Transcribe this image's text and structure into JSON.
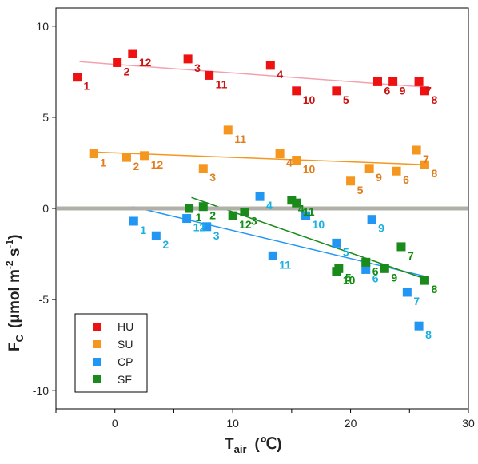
{
  "chart_data": {
    "type": "scatter",
    "title": "",
    "xlabel": {
      "main": "T",
      "sub": "air",
      "unit": "(℃)"
    },
    "ylabel": {
      "main": "F",
      "sub": "C",
      "unit_pre": "(μmol m",
      "sup1": "-2",
      "mid": " s",
      "sup2": "-1",
      "unit_post": ")"
    },
    "xlim": [
      -5,
      30
    ],
    "ylim": [
      -11,
      11
    ],
    "xticks": [
      -5,
      0,
      5,
      10,
      15,
      20,
      25,
      30
    ],
    "yticks": [
      -10,
      -5,
      0,
      5,
      10
    ],
    "xtick_labels": [
      "",
      "0",
      "",
      "10",
      "",
      "20",
      "",
      "30"
    ],
    "ytick_labels": [
      "-10",
      "-5",
      "0",
      "5",
      "10"
    ],
    "zero_line": {
      "y": 0,
      "color": "#b0b0a8"
    },
    "legend": {
      "position": "bottom-left",
      "entries": [
        "HU",
        "SU",
        "CP",
        "SF"
      ]
    },
    "series": [
      {
        "name": "HU",
        "color": "#ee1111",
        "label_color": "#cc1111",
        "line_color": "#f4a0b0",
        "fit": {
          "x": [
            -3,
            26.5
          ],
          "y": [
            8.05,
            6.65
          ]
        },
        "points": [
          {
            "x": -3.2,
            "y": 7.2,
            "label": "1"
          },
          {
            "x": 0.2,
            "y": 8.0,
            "label": "2"
          },
          {
            "x": 6.2,
            "y": 8.2,
            "label": "3"
          },
          {
            "x": 13.2,
            "y": 7.85,
            "label": "4"
          },
          {
            "x": 18.8,
            "y": 6.45,
            "label": "5"
          },
          {
            "x": 22.3,
            "y": 6.95,
            "label": "6"
          },
          {
            "x": 25.8,
            "y": 6.95,
            "label": "7"
          },
          {
            "x": 26.3,
            "y": 6.45,
            "label": "8"
          },
          {
            "x": 23.6,
            "y": 6.95,
            "label": "9"
          },
          {
            "x": 15.4,
            "y": 6.45,
            "label": "10"
          },
          {
            "x": 8.0,
            "y": 7.3,
            "label": "11"
          },
          {
            "x": 1.5,
            "y": 8.5,
            "label": "12"
          }
        ]
      },
      {
        "name": "SU",
        "color": "#f5961e",
        "label_color": "#e07d1c",
        "line_color": "#f5961e",
        "fit": {
          "x": [
            -2,
            26.5
          ],
          "y": [
            3.1,
            2.4
          ]
        },
        "points": [
          {
            "x": -1.8,
            "y": 3.0,
            "label": "1"
          },
          {
            "x": 1.0,
            "y": 2.8,
            "label": "2"
          },
          {
            "x": 7.5,
            "y": 2.2,
            "label": "3"
          },
          {
            "x": 14.0,
            "y": 3.0,
            "label": "4"
          },
          {
            "x": 20.0,
            "y": 1.5,
            "label": "5"
          },
          {
            "x": 23.9,
            "y": 2.05,
            "label": "6"
          },
          {
            "x": 25.6,
            "y": 3.2,
            "label": "7"
          },
          {
            "x": 26.3,
            "y": 2.4,
            "label": "8"
          },
          {
            "x": 21.6,
            "y": 2.2,
            "label": "9"
          },
          {
            "x": 15.4,
            "y": 2.65,
            "label": "10"
          },
          {
            "x": 9.6,
            "y": 4.3,
            "label": "11"
          },
          {
            "x": 2.5,
            "y": 2.9,
            "label": "12"
          }
        ]
      },
      {
        "name": "CP",
        "color": "#2196f3",
        "label_color": "#1ab0e0",
        "line_color": "#2196f3",
        "fit": {
          "x": [
            1.5,
            26.5
          ],
          "y": [
            0.1,
            -3.75
          ]
        },
        "points": [
          {
            "x": 1.6,
            "y": -0.7,
            "label": "1"
          },
          {
            "x": 3.5,
            "y": -1.5,
            "label": "2"
          },
          {
            "x": 7.8,
            "y": -1.0,
            "label": "3"
          },
          {
            "x": 12.3,
            "y": 0.65,
            "label": "4"
          },
          {
            "x": 18.8,
            "y": -1.9,
            "label": "5"
          },
          {
            "x": 21.3,
            "y": -3.35,
            "label": "6"
          },
          {
            "x": 24.8,
            "y": -4.6,
            "label": "7"
          },
          {
            "x": 25.8,
            "y": -6.45,
            "label": "8"
          },
          {
            "x": 21.8,
            "y": -0.6,
            "label": "9"
          },
          {
            "x": 16.2,
            "y": -0.4,
            "label": "10"
          },
          {
            "x": 13.4,
            "y": -2.6,
            "label": "11"
          },
          {
            "x": 6.1,
            "y": -0.55,
            "label": "12"
          }
        ]
      },
      {
        "name": "SF",
        "color": "#1a8a1a",
        "label_color": "#128c12",
        "line_color": "#1a8a1a",
        "fit": {
          "x": [
            6.5,
            26.5
          ],
          "y": [
            0.6,
            -3.9
          ]
        },
        "points": [
          {
            "x": 6.3,
            "y": 0.0,
            "label": "1"
          },
          {
            "x": 7.5,
            "y": 0.1,
            "label": "2"
          },
          {
            "x": 11.0,
            "y": -0.2,
            "label": "3"
          },
          {
            "x": 15.0,
            "y": 0.45,
            "label": "4"
          },
          {
            "x": 19.0,
            "y": -3.3,
            "label": "5"
          },
          {
            "x": 21.3,
            "y": -2.95,
            "label": "6"
          },
          {
            "x": 24.3,
            "y": -2.1,
            "label": "7"
          },
          {
            "x": 26.3,
            "y": -3.95,
            "label": "8"
          },
          {
            "x": 22.9,
            "y": -3.3,
            "label": "9"
          },
          {
            "x": 18.8,
            "y": -3.45,
            "label": "10"
          },
          {
            "x": 15.4,
            "y": 0.3,
            "label": "11"
          },
          {
            "x": 10.0,
            "y": -0.4,
            "label": "12"
          }
        ]
      }
    ]
  }
}
